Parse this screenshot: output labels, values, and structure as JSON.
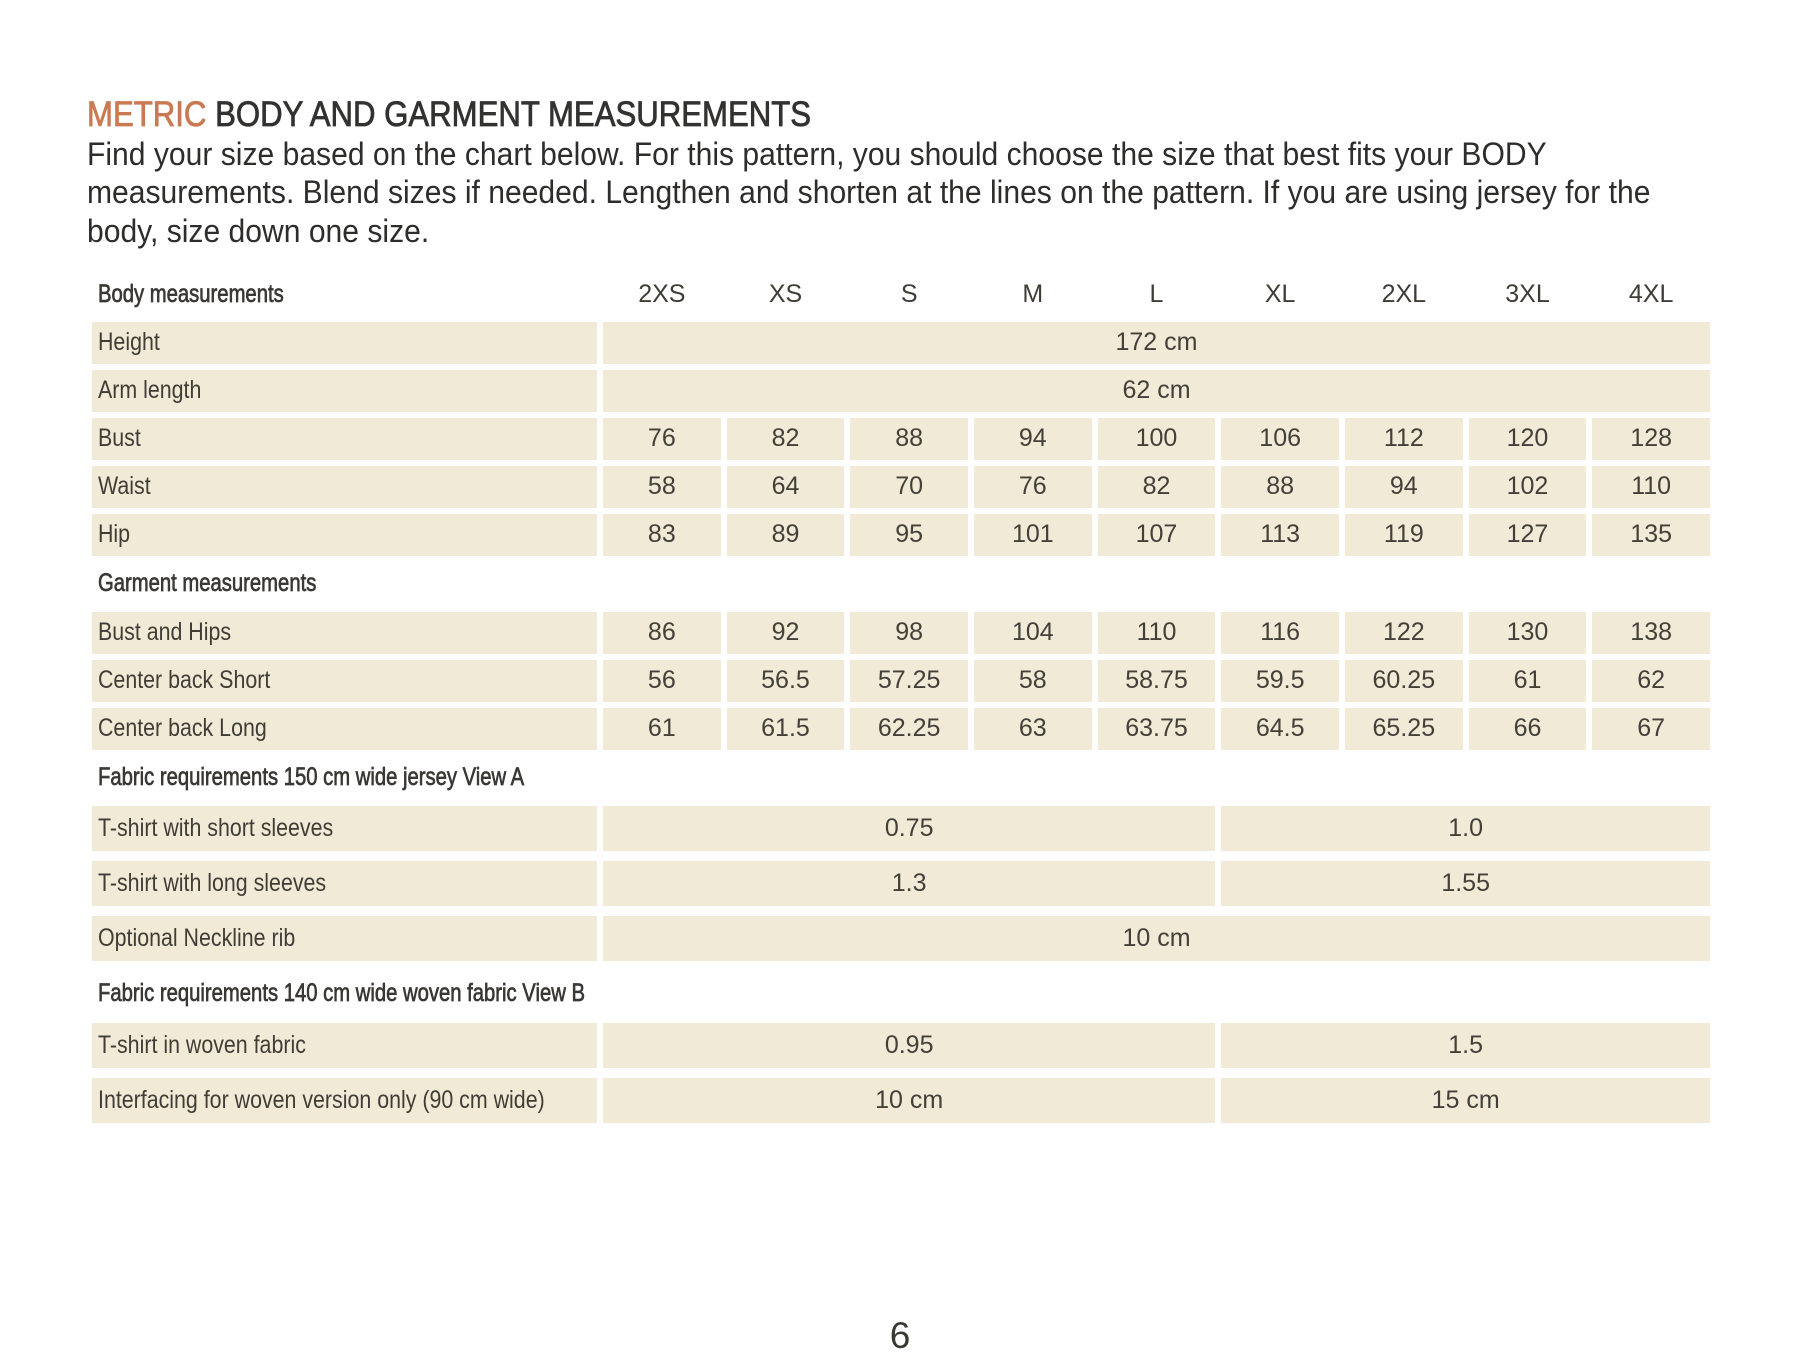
{
  "title": {
    "highlight": "METRIC",
    "rest": "BODY AND GARMENT MEASUREMENTS"
  },
  "intro": {
    "lines": [
      "Find your size based on the chart below. For this pattern, you should choose the size that best fits your BODY",
      "measurements. Blend sizes if needed. Lengthen and shorten at the lines on the pattern. If you are using jersey for the",
      "body, size down one size."
    ]
  },
  "page_number": "6",
  "colors": {
    "accent": "#c97a52",
    "cell_background": "#f1ead6",
    "text": "#3e3b35"
  },
  "table": {
    "header_label": "Body measurements",
    "sizes": [
      "2XS",
      "XS",
      "S",
      "M",
      "L",
      "XL",
      "2XL",
      "3XL",
      "4XL"
    ],
    "sections": [
      {
        "rows": [
          {
            "label": "Height",
            "span_all": "172 cm"
          },
          {
            "label": "Arm length",
            "span_all": "62 cm"
          },
          {
            "label": "Bust",
            "values": [
              "76",
              "82",
              "88",
              "94",
              "100",
              "106",
              "112",
              "120",
              "128"
            ]
          },
          {
            "label": "Waist",
            "values": [
              "58",
              "64",
              "70",
              "76",
              "82",
              "88",
              "94",
              "102",
              "110"
            ]
          },
          {
            "label": "Hip",
            "values": [
              "83",
              "89",
              "95",
              "101",
              "107",
              "113",
              "119",
              "127",
              "135"
            ]
          }
        ]
      },
      {
        "header": "Garment measurements",
        "rows": [
          {
            "label": "Bust and Hips",
            "values": [
              "86",
              "92",
              "98",
              "104",
              "110",
              "116",
              "122",
              "130",
              "138"
            ]
          },
          {
            "label": "Center back Short",
            "values": [
              "56",
              "56.5",
              "57.25",
              "58",
              "58.75",
              "59.5",
              "60.25",
              "61",
              "62"
            ]
          },
          {
            "label": "Center back Long",
            "values": [
              "61",
              "61.5",
              "62.25",
              "63",
              "63.75",
              "64.5",
              "65.25",
              "66",
              "67"
            ]
          }
        ]
      },
      {
        "header": "Fabric requirements 150 cm wide jersey View A",
        "rows": [
          {
            "label": "T-shirt with short sleeves",
            "split": [
              "0.75",
              "1.0"
            ]
          },
          {
            "label": "T-shirt with long sleeves",
            "split": [
              "1.3",
              "1.55"
            ]
          },
          {
            "label": "Optional Neckline rib",
            "span_all": "10 cm"
          }
        ]
      },
      {
        "header": "Fabric requirements 140 cm wide woven fabric View B",
        "rows": [
          {
            "label": "T-shirt in woven fabric",
            "split": [
              "0.95",
              "1.5"
            ]
          },
          {
            "label": "Interfacing for woven version only (90 cm wide)",
            "split": [
              "10 cm",
              "15 cm"
            ]
          }
        ]
      }
    ]
  }
}
